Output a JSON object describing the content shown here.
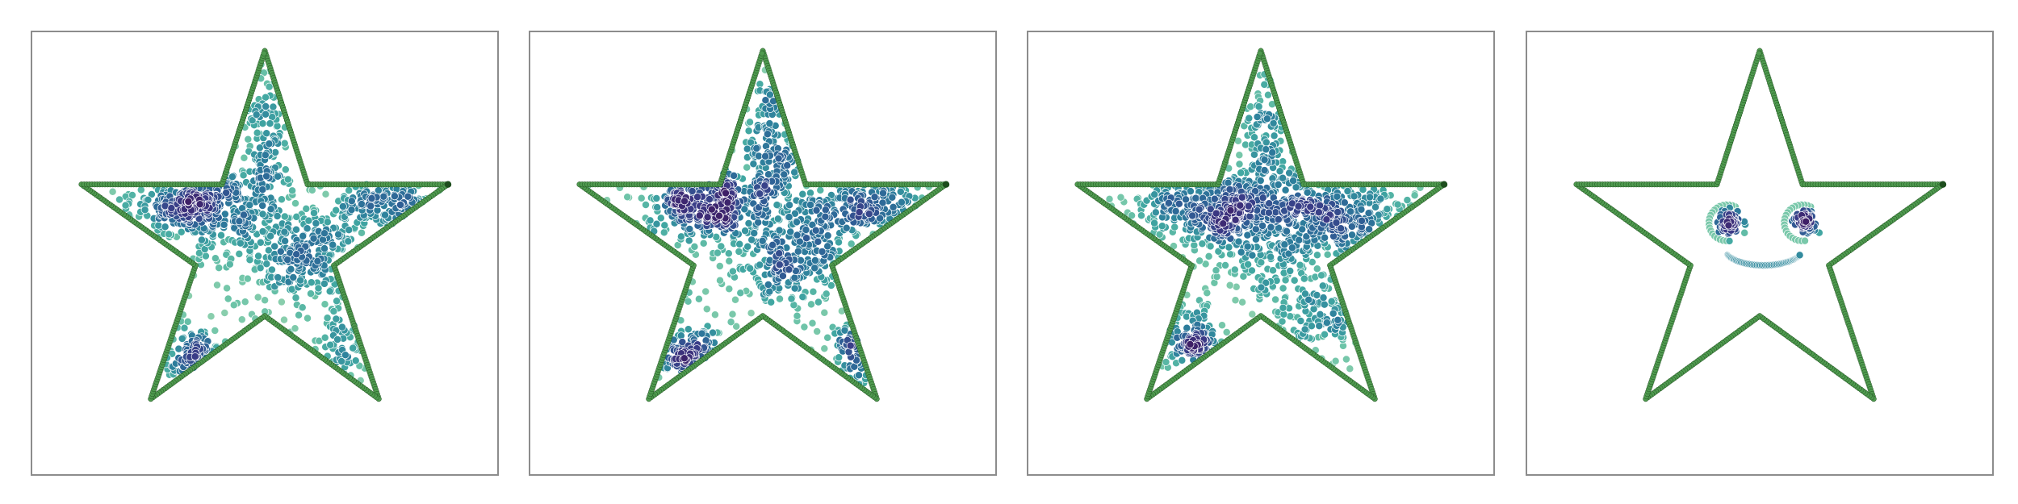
{
  "colors": {
    "outline": "#4f9a4f",
    "outline_dark": "#1d4d1d",
    "frame": "#8c8c8c",
    "point_edge": "#ffffff",
    "colormap": [
      "#9ad4b0",
      "#6cc3a8",
      "#41a7a2",
      "#2d7f9c",
      "#2f5e95",
      "#3b3a86",
      "#3e1f66"
    ]
  },
  "chart_data": [
    {
      "type": "scatter",
      "title": "",
      "xlabel": "",
      "ylabel": "",
      "grid": false,
      "xlim": [
        -1.15,
        1.15
      ],
      "ylim": [
        -1.15,
        1.05
      ],
      "outline": "star",
      "star_vertices": [
        [
          0.0,
          0.95
        ],
        [
          0.21,
          0.29
        ],
        [
          0.9,
          0.29
        ],
        [
          0.34,
          -0.11
        ],
        [
          0.56,
          -0.77
        ],
        [
          0.0,
          -0.36
        ],
        [
          -0.56,
          -0.77
        ],
        [
          -0.34,
          -0.11
        ],
        [
          -0.9,
          0.29
        ],
        [
          -0.21,
          0.29
        ]
      ],
      "clusters": [
        {
          "cx": -0.32,
          "cy": 0.2,
          "sx": 0.17,
          "sy": 0.09,
          "n": 340
        },
        {
          "cx": 0.19,
          "cy": -0.05,
          "sx": 0.16,
          "sy": 0.13,
          "n": 230
        },
        {
          "cx": 0.62,
          "cy": 0.19,
          "sx": 0.15,
          "sy": 0.07,
          "n": 140
        },
        {
          "cx": -0.35,
          "cy": -0.58,
          "sx": 0.07,
          "sy": 0.08,
          "n": 95
        },
        {
          "cx": 0.0,
          "cy": 0.55,
          "sx": 0.06,
          "sy": 0.22,
          "n": 120
        },
        {
          "cx": 0.4,
          "cy": -0.5,
          "sx": 0.07,
          "sy": 0.14,
          "n": 60
        },
        {
          "cx": 0.0,
          "cy": 0.05,
          "sx": 0.4,
          "sy": 0.3,
          "n": 160
        }
      ]
    },
    {
      "type": "scatter",
      "title": "",
      "xlabel": "",
      "ylabel": "",
      "grid": false,
      "xlim": [
        -1.15,
        1.15
      ],
      "ylim": [
        -1.15,
        1.05
      ],
      "outline": "star",
      "star_vertices": [
        [
          0.0,
          0.95
        ],
        [
          0.21,
          0.29
        ],
        [
          0.9,
          0.29
        ],
        [
          0.34,
          -0.11
        ],
        [
          0.56,
          -0.77
        ],
        [
          0.0,
          -0.36
        ],
        [
          -0.56,
          -0.77
        ],
        [
          -0.34,
          -0.11
        ],
        [
          -0.9,
          0.29
        ],
        [
          -0.21,
          0.29
        ]
      ],
      "clusters": [
        {
          "cx": -0.3,
          "cy": 0.2,
          "sx": 0.15,
          "sy": 0.09,
          "n": 280
        },
        {
          "cx": 0.05,
          "cy": 0.45,
          "sx": 0.08,
          "sy": 0.25,
          "n": 190
        },
        {
          "cx": 0.18,
          "cy": -0.05,
          "sx": 0.16,
          "sy": 0.13,
          "n": 220
        },
        {
          "cx": 0.55,
          "cy": 0.2,
          "sx": 0.17,
          "sy": 0.07,
          "n": 150
        },
        {
          "cx": -0.35,
          "cy": -0.55,
          "sx": 0.1,
          "sy": 0.07,
          "n": 110
        },
        {
          "cx": 0.45,
          "cy": -0.55,
          "sx": 0.07,
          "sy": 0.12,
          "n": 70
        },
        {
          "cx": 0.0,
          "cy": 0.0,
          "sx": 0.4,
          "sy": 0.3,
          "n": 160
        }
      ]
    },
    {
      "type": "scatter",
      "title": "",
      "xlabel": "",
      "ylabel": "",
      "grid": false,
      "xlim": [
        -1.15,
        1.15
      ],
      "ylim": [
        -1.15,
        1.05
      ],
      "outline": "star",
      "star_vertices": [
        [
          0.0,
          0.95
        ],
        [
          0.21,
          0.29
        ],
        [
          0.9,
          0.29
        ],
        [
          0.34,
          -0.11
        ],
        [
          0.56,
          -0.77
        ],
        [
          0.0,
          -0.36
        ],
        [
          -0.56,
          -0.77
        ],
        [
          -0.34,
          -0.11
        ],
        [
          -0.9,
          0.29
        ],
        [
          -0.21,
          0.29
        ]
      ],
      "clusters": [
        {
          "cx": -0.25,
          "cy": 0.18,
          "sx": 0.18,
          "sy": 0.09,
          "n": 300
        },
        {
          "cx": 0.1,
          "cy": 0.1,
          "sx": 0.22,
          "sy": 0.16,
          "n": 320
        },
        {
          "cx": 0.4,
          "cy": 0.15,
          "sx": 0.2,
          "sy": 0.09,
          "n": 200
        },
        {
          "cx": -0.36,
          "cy": -0.48,
          "sx": 0.09,
          "sy": 0.08,
          "n": 130
        },
        {
          "cx": 0.05,
          "cy": 0.55,
          "sx": 0.07,
          "sy": 0.2,
          "n": 110
        },
        {
          "cx": 0.25,
          "cy": -0.35,
          "sx": 0.12,
          "sy": 0.13,
          "n": 110
        },
        {
          "cx": 0.0,
          "cy": 0.0,
          "sx": 0.4,
          "sy": 0.3,
          "n": 140
        }
      ]
    },
    {
      "type": "scatter",
      "title": "",
      "xlabel": "",
      "ylabel": "",
      "grid": false,
      "xlim": [
        -1.15,
        1.15
      ],
      "ylim": [
        -1.15,
        1.05
      ],
      "outline": "star",
      "star_vertices": [
        [
          0.0,
          0.95
        ],
        [
          0.21,
          0.29
        ],
        [
          0.9,
          0.29
        ],
        [
          0.34,
          -0.11
        ],
        [
          0.56,
          -0.77
        ],
        [
          0.0,
          -0.36
        ],
        [
          -0.56,
          -0.77
        ],
        [
          -0.34,
          -0.11
        ],
        [
          -0.9,
          0.29
        ],
        [
          -0.21,
          0.29
        ]
      ],
      "face": {
        "eyes": [
          {
            "cx": -0.16,
            "cy": 0.1,
            "ring_r": 0.085,
            "n_ring": 22,
            "n_pupil": 60
          },
          {
            "cx": 0.21,
            "cy": 0.1,
            "ring_r": 0.085,
            "n_ring": 22,
            "n_pupil": 60
          }
        ],
        "mouth": {
          "cx": 0.02,
          "cy": -0.08,
          "rx": 0.19,
          "ry": 0.08,
          "n": 55
        }
      }
    }
  ]
}
